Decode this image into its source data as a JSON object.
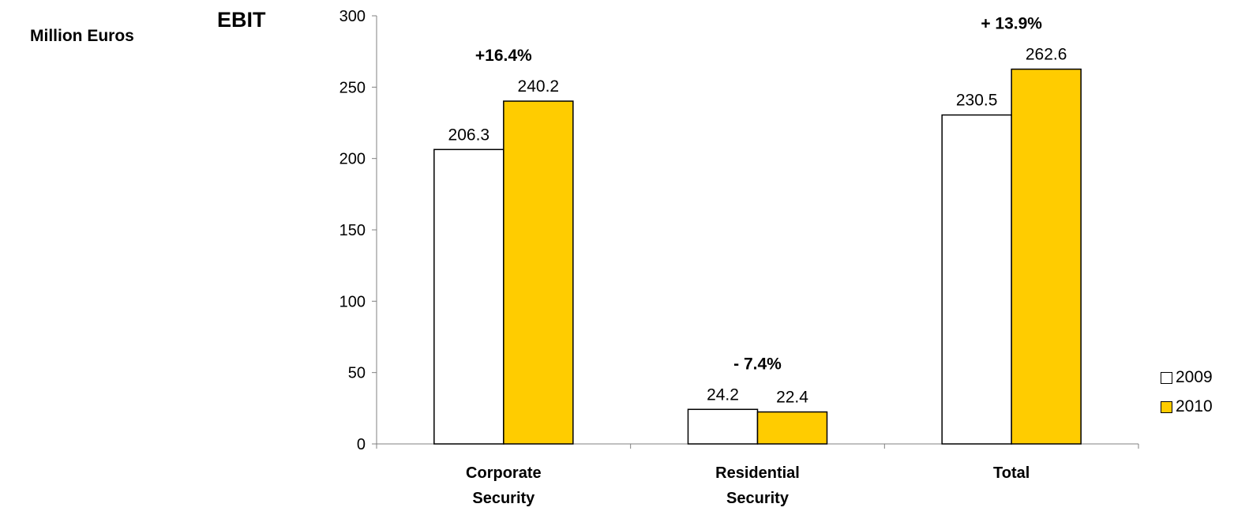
{
  "unit_label": "Million Euros",
  "colors": {
    "2009": "#ffffff",
    "2010": "#ffcc00",
    "axis": "#808080",
    "bar_stroke": "#000000"
  },
  "chart_data": {
    "type": "bar",
    "title": "EBIT",
    "categories": [
      [
        "Corporate",
        "Security"
      ],
      [
        "Residential",
        "Security"
      ],
      [
        "Total"
      ]
    ],
    "series": [
      {
        "name": "2009",
        "values": [
          206.3,
          24.2,
          230.5
        ]
      },
      {
        "name": "2010",
        "values": [
          240.2,
          22.4,
          262.6
        ]
      }
    ],
    "data_labels": {
      "2009": [
        "206.3",
        "24.2",
        "230.5"
      ],
      "2010": [
        "240.2",
        "22.4",
        "262.6"
      ]
    },
    "change_labels": [
      "+16.4%",
      "- 7.4%",
      "+ 13.9%"
    ],
    "ylim": [
      0,
      300
    ],
    "yticks": [
      0,
      50,
      100,
      150,
      200,
      250,
      300
    ],
    "grid": false,
    "legend_position": "right-bottom"
  }
}
